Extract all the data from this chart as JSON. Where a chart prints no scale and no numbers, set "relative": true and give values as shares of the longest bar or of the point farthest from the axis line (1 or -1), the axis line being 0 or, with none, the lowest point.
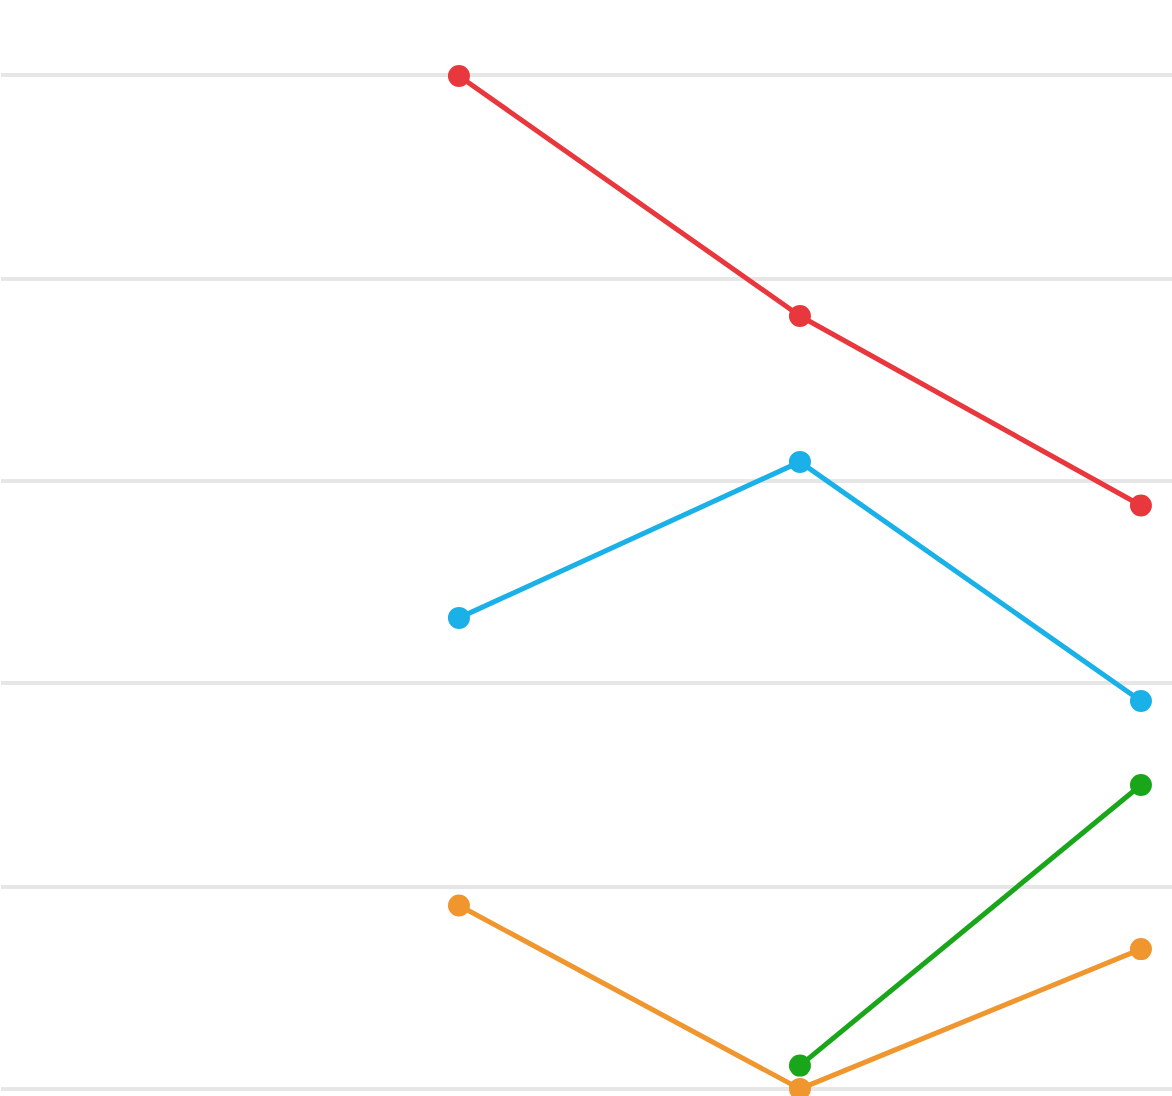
{
  "chart_data": {
    "type": "line",
    "relative": true,
    "categories": [
      null,
      null,
      null
    ],
    "grid": "y",
    "marker": "circle",
    "line_style": "solid",
    "series": [
      {
        "color": "#e8383d",
        "values": [
          1,
          0.763,
          0.576
        ]
      },
      {
        "color": "#1ab0e8",
        "values": [
          0.465,
          0.619,
          0.383
        ]
      },
      {
        "color": "#1aa61a",
        "values": [
          null,
          0.023,
          0.3
        ]
      },
      {
        "color": "#f0962e",
        "values": [
          0.181,
          0,
          0.138
        ]
      }
    ]
  }
}
